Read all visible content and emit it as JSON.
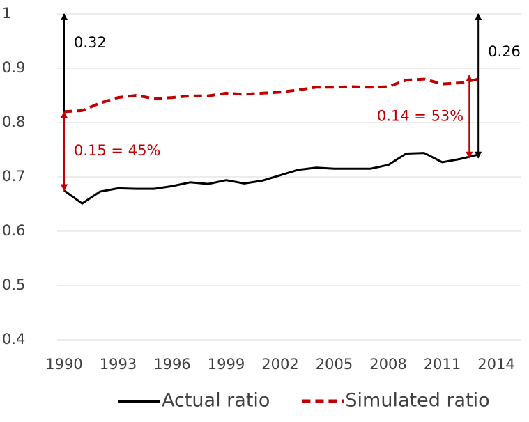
{
  "chart_data": {
    "type": "line",
    "x": [
      1990,
      1991,
      1992,
      1993,
      1994,
      1995,
      1996,
      1997,
      1998,
      1999,
      2000,
      2001,
      2002,
      2003,
      2004,
      2005,
      2006,
      2007,
      2008,
      2009,
      2010,
      2011,
      2012,
      2013
    ],
    "series": [
      {
        "name": "Actual ratio",
        "color": "#000000",
        "dash": false,
        "values": [
          0.675,
          0.651,
          0.673,
          0.679,
          0.678,
          0.678,
          0.683,
          0.69,
          0.687,
          0.694,
          0.688,
          0.693,
          0.703,
          0.713,
          0.717,
          0.715,
          0.715,
          0.715,
          0.722,
          0.743,
          0.744,
          0.727,
          0.733,
          0.741
        ]
      },
      {
        "name": "Simulated ratio",
        "color": "#c00000",
        "dash": true,
        "values": [
          0.82,
          0.822,
          0.836,
          0.846,
          0.85,
          0.844,
          0.846,
          0.849,
          0.849,
          0.854,
          0.852,
          0.854,
          0.856,
          0.86,
          0.865,
          0.865,
          0.866,
          0.865,
          0.866,
          0.878,
          0.88,
          0.871,
          0.873,
          0.88
        ]
      }
    ],
    "xlim": [
      1990,
      2014
    ],
    "xticks": [
      1990,
      1993,
      1996,
      1999,
      2002,
      2005,
      2008,
      2011,
      2014
    ],
    "ylim": [
      0.4,
      1
    ],
    "yticks": [
      0.4,
      0.5,
      0.6,
      0.7,
      0.8,
      0.9,
      1
    ],
    "grid": true,
    "legend": "bottom",
    "annotations": [
      {
        "text": "0.32",
        "x": 1990,
        "y1": 1,
        "y2": 0.675,
        "color": "#000000"
      },
      {
        "text": "0.15 = 45%",
        "x": 1990,
        "y1": 0.82,
        "y2": 0.675,
        "color": "#c00000"
      },
      {
        "text": "0.26",
        "x": 2013,
        "y1": 1,
        "y2": 0.735,
        "color": "#000000"
      },
      {
        "text": "0.14 = 53%",
        "x": 2012.5,
        "y1": 0.887,
        "y2": 0.735,
        "color": "#c00000"
      }
    ]
  }
}
